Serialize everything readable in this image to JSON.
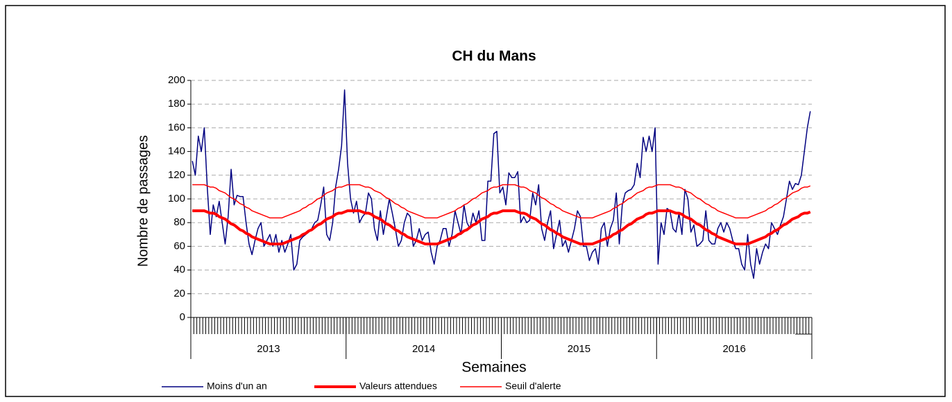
{
  "chart_data": {
    "type": "line",
    "title": "CH du Mans",
    "y_label": "Nombre de passages",
    "x_label": "Semaines",
    "x_groups": [
      "2013",
      "2014",
      "2015",
      "2016"
    ],
    "categories": [
      null,
      null,
      null,
      null,
      null,
      null,
      null,
      null,
      null,
      null,
      null,
      null,
      null,
      null,
      null,
      null,
      null,
      null,
      null,
      null,
      null,
      null,
      null,
      null,
      null,
      null,
      null,
      null,
      null,
      null,
      null,
      null,
      null,
      null,
      null,
      null,
      null,
      null,
      null,
      null,
      null,
      null,
      null,
      null,
      null,
      null,
      null,
      null,
      null,
      null,
      null,
      null,
      null,
      null,
      null,
      null,
      null,
      null,
      null,
      null,
      null,
      null,
      null,
      null,
      null,
      null,
      null,
      null,
      null,
      null,
      null,
      null,
      null,
      null,
      null,
      null,
      null,
      null,
      null,
      null,
      null,
      null,
      null,
      null,
      null,
      null,
      null,
      null,
      null,
      null,
      null,
      null,
      null,
      null,
      null,
      null,
      null,
      null,
      null,
      null,
      null,
      null,
      null,
      null,
      null,
      null,
      null,
      null,
      null,
      null,
      null,
      null,
      null,
      null,
      null,
      null,
      null,
      null,
      null,
      null,
      null,
      null,
      null,
      null,
      null,
      null,
      null,
      null,
      null,
      null,
      null,
      null,
      null,
      null,
      null,
      null,
      null,
      null,
      null,
      null,
      null,
      null,
      null,
      null,
      null,
      null,
      null,
      null,
      null,
      null,
      null,
      null,
      null,
      null,
      null,
      null,
      null,
      null,
      null,
      null,
      null,
      null,
      null,
      null,
      null,
      null,
      null,
      null,
      null,
      null,
      null,
      null,
      null,
      null,
      null,
      null,
      null,
      null,
      null,
      null,
      null,
      null,
      null,
      null,
      null,
      null,
      null,
      null,
      null,
      null,
      null,
      null,
      null,
      null,
      null,
      null,
      null,
      null,
      null,
      null,
      null,
      null,
      null,
      null,
      null,
      null,
      null,
      null
    ],
    "ylim": [
      0,
      200
    ],
    "yticks": [
      0,
      20,
      40,
      60,
      80,
      100,
      120,
      140,
      160,
      180,
      200
    ],
    "grid": true,
    "legend": "bottom",
    "series": [
      {
        "name": "Moins d'un an",
        "color": "#000080",
        "width": 1.5,
        "values": [
          132,
          120,
          153,
          140,
          160,
          110,
          70,
          95,
          85,
          98,
          80,
          62,
          85,
          125,
          95,
          103,
          102,
          102,
          80,
          62,
          53,
          65,
          75,
          80,
          60,
          65,
          70,
          60,
          70,
          55,
          65,
          55,
          62,
          70,
          40,
          45,
          65,
          68,
          70,
          72,
          75,
          80,
          82,
          95,
          110,
          70,
          65,
          80,
          110,
          125,
          145,
          192,
          130,
          100,
          88,
          98,
          80,
          85,
          88,
          105,
          100,
          75,
          65,
          90,
          70,
          85,
          100,
          88,
          75,
          60,
          65,
          80,
          88,
          85,
          60,
          65,
          75,
          65,
          70,
          72,
          55,
          45,
          60,
          65,
          75,
          75,
          60,
          70,
          90,
          80,
          70,
          95,
          80,
          75,
          88,
          80,
          90,
          65,
          65,
          115,
          115,
          155,
          157,
          105,
          110,
          95,
          122,
          118,
          118,
          123,
          80,
          85,
          80,
          82,
          105,
          95,
          112,
          75,
          65,
          80,
          90,
          58,
          70,
          82,
          60,
          65,
          55,
          65,
          75,
          90,
          85,
          60,
          60,
          48,
          55,
          58,
          45,
          75,
          80,
          60,
          75,
          82,
          105,
          62,
          95,
          105,
          107,
          108,
          112,
          130,
          118,
          152,
          140,
          153,
          140,
          160,
          45,
          80,
          70,
          92,
          90,
          75,
          72,
          88,
          70,
          108,
          100,
          72,
          78,
          60,
          62,
          65,
          90,
          65,
          62,
          62,
          75,
          80,
          72,
          80,
          75,
          65,
          58,
          58,
          45,
          40,
          70,
          45,
          33,
          58,
          45,
          55,
          62,
          58,
          80,
          75,
          70,
          78,
          85,
          100,
          115,
          108,
          113,
          112,
          120,
          140,
          160,
          174
        ]
      },
      {
        "name": "Valeurs attendues",
        "color": "#ff0000",
        "width": 4,
        "values": [
          90,
          90,
          90,
          90,
          90,
          89,
          88,
          88,
          87,
          85,
          84,
          83,
          81,
          79,
          78,
          76,
          74,
          73,
          71,
          70,
          68,
          67,
          66,
          65,
          64,
          63,
          62,
          62,
          62,
          62,
          62,
          63,
          64,
          65,
          66,
          67,
          68,
          70,
          71,
          73,
          74,
          76,
          78,
          79,
          81,
          83,
          84,
          85,
          87,
          88,
          88,
          89,
          90,
          90,
          90,
          90,
          90,
          89,
          88,
          88,
          87,
          85,
          84,
          83,
          81,
          79,
          78,
          76,
          74,
          73,
          71,
          70,
          68,
          67,
          66,
          65,
          64,
          63,
          62,
          62,
          62,
          62,
          62,
          63,
          64,
          65,
          66,
          67,
          68,
          70,
          71,
          73,
          74,
          76,
          78,
          79,
          81,
          83,
          84,
          85,
          87,
          88,
          88,
          89,
          90,
          90,
          90,
          90,
          90,
          89,
          88,
          88,
          87,
          85,
          84,
          83,
          81,
          79,
          78,
          76,
          74,
          73,
          71,
          70,
          68,
          67,
          66,
          65,
          64,
          63,
          62,
          62,
          62,
          62,
          62,
          63,
          64,
          65,
          66,
          67,
          68,
          70,
          71,
          73,
          74,
          76,
          78,
          79,
          81,
          83,
          84,
          85,
          87,
          88,
          88,
          89,
          90,
          90,
          90,
          90,
          90,
          89,
          88,
          88,
          87,
          85,
          84,
          83,
          81,
          79,
          78,
          76,
          74,
          73,
          71,
          70,
          68,
          67,
          66,
          65,
          64,
          63,
          62,
          62,
          62,
          62,
          62,
          63,
          64,
          65,
          66,
          67,
          68,
          70,
          71,
          73,
          74,
          76,
          78,
          79,
          81,
          83,
          84,
          85,
          87,
          88,
          88,
          89
        ]
      },
      {
        "name": "Seuil d'alerte",
        "color": "#ff0000",
        "width": 1.5,
        "values": [
          112,
          112,
          112,
          112,
          112,
          111,
          110,
          110,
          109,
          107,
          106,
          105,
          103,
          101,
          100,
          98,
          96,
          95,
          93,
          92,
          90,
          89,
          88,
          87,
          86,
          85,
          84,
          84,
          84,
          84,
          84,
          85,
          86,
          87,
          88,
          89,
          90,
          92,
          93,
          95,
          96,
          98,
          100,
          101,
          103,
          105,
          106,
          107,
          109,
          110,
          110,
          111,
          112,
          112,
          112,
          112,
          112,
          111,
          110,
          110,
          109,
          107,
          106,
          105,
          103,
          101,
          100,
          98,
          96,
          95,
          93,
          92,
          90,
          89,
          88,
          87,
          86,
          85,
          84,
          84,
          84,
          84,
          84,
          85,
          86,
          87,
          88,
          89,
          90,
          92,
          93,
          95,
          96,
          98,
          100,
          101,
          103,
          105,
          106,
          107,
          109,
          110,
          110,
          111,
          112,
          112,
          112,
          112,
          112,
          111,
          110,
          110,
          109,
          107,
          106,
          105,
          103,
          101,
          100,
          98,
          96,
          95,
          93,
          92,
          90,
          89,
          88,
          87,
          86,
          85,
          84,
          84,
          84,
          84,
          84,
          85,
          86,
          87,
          88,
          89,
          90,
          92,
          93,
          95,
          96,
          98,
          100,
          101,
          103,
          105,
          106,
          107,
          109,
          110,
          110,
          111,
          112,
          112,
          112,
          112,
          112,
          111,
          110,
          110,
          109,
          107,
          106,
          105,
          103,
          101,
          100,
          98,
          96,
          95,
          93,
          92,
          90,
          89,
          88,
          87,
          86,
          85,
          84,
          84,
          84,
          84,
          84,
          85,
          86,
          87,
          88,
          89,
          90,
          92,
          93,
          95,
          96,
          98,
          100,
          101,
          103,
          105,
          106,
          107,
          109,
          110,
          110,
          111
        ]
      }
    ]
  }
}
